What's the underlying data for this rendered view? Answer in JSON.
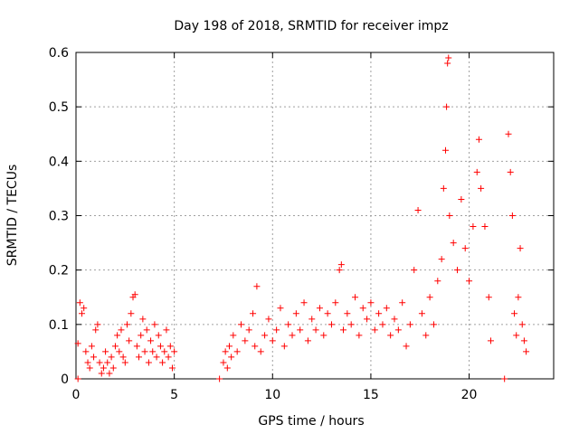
{
  "chart_data": {
    "type": "scatter",
    "title": "Day 198 of 2018, SRMTID for receiver impz",
    "xlabel": "GPS time / hours",
    "ylabel": "SRMTID / TECUs",
    "xlim": [
      0,
      24.3
    ],
    "ylim": [
      0,
      0.6
    ],
    "xticks": [
      0,
      5,
      10,
      15,
      20
    ],
    "yticks": [
      0,
      0.1,
      0.2,
      0.3,
      0.4,
      0.5,
      0.6
    ],
    "grid": true,
    "marker": "+",
    "color": "#ff0000",
    "gaps_hours": [
      [
        5.05,
        7.4
      ],
      [
        21.2,
        21.8
      ]
    ],
    "series": [
      {
        "name": "SRMTID",
        "points": [
          [
            0.1,
            0.065
          ],
          [
            0.2,
            0.14
          ],
          [
            0.3,
            0.12
          ],
          [
            0.4,
            0.13
          ],
          [
            0.5,
            0.05
          ],
          [
            0.6,
            0.03
          ],
          [
            0.7,
            0.02
          ],
          [
            0.8,
            0.06
          ],
          [
            0.9,
            0.04
          ],
          [
            1.0,
            0.09
          ],
          [
            1.1,
            0.1
          ],
          [
            1.2,
            0.03
          ],
          [
            1.3,
            0.01
          ],
          [
            1.4,
            0.02
          ],
          [
            1.5,
            0.05
          ],
          [
            1.6,
            0.03
          ],
          [
            1.7,
            0.01
          ],
          [
            1.8,
            0.04
          ],
          [
            1.9,
            0.02
          ],
          [
            2.0,
            0.06
          ],
          [
            2.1,
            0.08
          ],
          [
            2.2,
            0.05
          ],
          [
            2.3,
            0.09
          ],
          [
            2.4,
            0.04
          ],
          [
            2.5,
            0.03
          ],
          [
            2.6,
            0.1
          ],
          [
            2.7,
            0.07
          ],
          [
            2.8,
            0.12
          ],
          [
            2.9,
            0.15
          ],
          [
            3.0,
            0.155
          ],
          [
            3.1,
            0.06
          ],
          [
            3.2,
            0.04
          ],
          [
            3.3,
            0.08
          ],
          [
            3.4,
            0.11
          ],
          [
            3.5,
            0.05
          ],
          [
            3.6,
            0.09
          ],
          [
            3.7,
            0.03
          ],
          [
            3.8,
            0.07
          ],
          [
            3.9,
            0.05
          ],
          [
            4.0,
            0.1
          ],
          [
            4.1,
            0.04
          ],
          [
            4.2,
            0.08
          ],
          [
            4.3,
            0.06
          ],
          [
            4.4,
            0.03
          ],
          [
            4.5,
            0.05
          ],
          [
            4.6,
            0.09
          ],
          [
            4.7,
            0.04
          ],
          [
            4.8,
            0.06
          ],
          [
            4.9,
            0.02
          ],
          [
            5.0,
            0.05
          ],
          [
            7.5,
            0.03
          ],
          [
            7.6,
            0.05
          ],
          [
            7.7,
            0.02
          ],
          [
            7.8,
            0.06
          ],
          [
            7.9,
            0.04
          ],
          [
            8.0,
            0.08
          ],
          [
            8.2,
            0.05
          ],
          [
            8.4,
            0.1
          ],
          [
            8.6,
            0.07
          ],
          [
            8.8,
            0.09
          ],
          [
            9.0,
            0.12
          ],
          [
            9.1,
            0.06
          ],
          [
            9.2,
            0.17
          ],
          [
            9.4,
            0.05
          ],
          [
            9.6,
            0.08
          ],
          [
            9.8,
            0.11
          ],
          [
            10.0,
            0.07
          ],
          [
            10.2,
            0.09
          ],
          [
            10.4,
            0.13
          ],
          [
            10.6,
            0.06
          ],
          [
            10.8,
            0.1
          ],
          [
            11.0,
            0.08
          ],
          [
            11.2,
            0.12
          ],
          [
            11.4,
            0.09
          ],
          [
            11.6,
            0.14
          ],
          [
            11.8,
            0.07
          ],
          [
            12.0,
            0.11
          ],
          [
            12.2,
            0.09
          ],
          [
            12.4,
            0.13
          ],
          [
            12.6,
            0.08
          ],
          [
            12.8,
            0.12
          ],
          [
            13.0,
            0.1
          ],
          [
            13.2,
            0.14
          ],
          [
            13.4,
            0.2
          ],
          [
            13.5,
            0.21
          ],
          [
            13.6,
            0.09
          ],
          [
            13.8,
            0.12
          ],
          [
            14.0,
            0.1
          ],
          [
            14.2,
            0.15
          ],
          [
            14.4,
            0.08
          ],
          [
            14.6,
            0.13
          ],
          [
            14.8,
            0.11
          ],
          [
            15.0,
            0.14
          ],
          [
            15.2,
            0.09
          ],
          [
            15.4,
            0.12
          ],
          [
            15.6,
            0.1
          ],
          [
            15.8,
            0.13
          ],
          [
            16.0,
            0.08
          ],
          [
            16.2,
            0.11
          ],
          [
            16.4,
            0.09
          ],
          [
            16.6,
            0.14
          ],
          [
            16.8,
            0.06
          ],
          [
            17.0,
            0.1
          ],
          [
            17.2,
            0.2
          ],
          [
            17.4,
            0.31
          ],
          [
            17.6,
            0.12
          ],
          [
            17.8,
            0.08
          ],
          [
            18.0,
            0.15
          ],
          [
            18.2,
            0.1
          ],
          [
            18.4,
            0.18
          ],
          [
            18.6,
            0.22
          ],
          [
            18.7,
            0.35
          ],
          [
            18.8,
            0.42
          ],
          [
            18.85,
            0.5
          ],
          [
            18.9,
            0.58
          ],
          [
            18.95,
            0.59
          ],
          [
            19.0,
            0.3
          ],
          [
            19.2,
            0.25
          ],
          [
            19.4,
            0.2
          ],
          [
            19.6,
            0.33
          ],
          [
            19.8,
            0.24
          ],
          [
            20.0,
            0.18
          ],
          [
            20.2,
            0.28
          ],
          [
            20.4,
            0.38
          ],
          [
            20.5,
            0.44
          ],
          [
            20.6,
            0.35
          ],
          [
            20.8,
            0.28
          ],
          [
            21.0,
            0.15
          ],
          [
            21.1,
            0.07
          ],
          [
            22.0,
            0.45
          ],
          [
            22.1,
            0.38
          ],
          [
            22.2,
            0.3
          ],
          [
            22.3,
            0.12
          ],
          [
            22.4,
            0.08
          ],
          [
            22.5,
            0.15
          ],
          [
            22.6,
            0.24
          ],
          [
            22.7,
            0.1
          ],
          [
            22.8,
            0.07
          ],
          [
            22.9,
            0.05
          ],
          [
            21.8,
            0.0
          ],
          [
            7.3,
            0.0
          ],
          [
            0.1,
            0.0
          ]
        ]
      }
    ]
  }
}
